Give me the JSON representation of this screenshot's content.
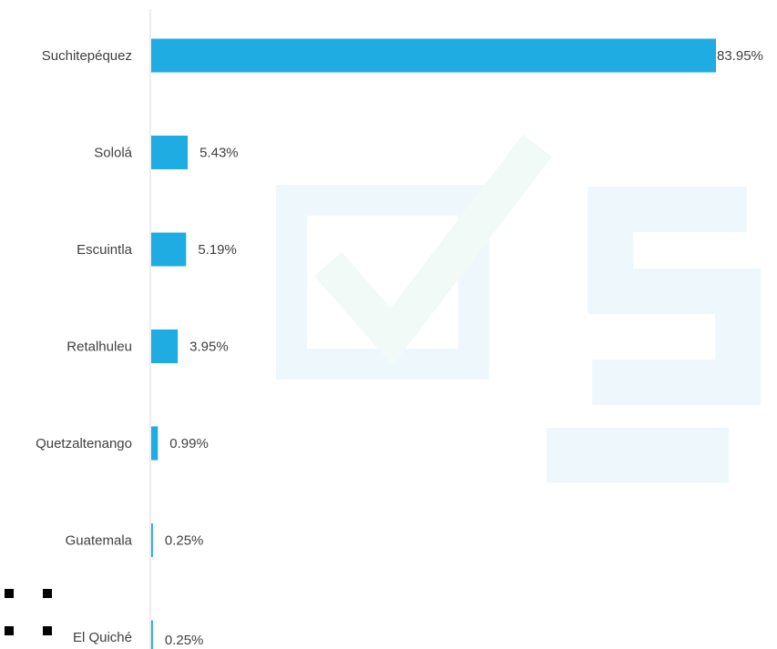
{
  "chart_data": {
    "type": "bar",
    "orientation": "horizontal",
    "categories": [
      "Suchitepéquez",
      "Sololá",
      "Escuintla",
      "Retalhuleu",
      "Quetzaltenango",
      "Guatemala",
      "El Quiché"
    ],
    "values": [
      83.95,
      5.43,
      5.19,
      3.95,
      0.99,
      0.25,
      0.25
    ],
    "value_labels": [
      "83.95%",
      "5.43%",
      "5.19%",
      "3.95%",
      "0.99%",
      "0.25%",
      "0.25%"
    ],
    "xlim": [
      0,
      83.95
    ],
    "grid": false,
    "bar_color": "#1eace3"
  }
}
